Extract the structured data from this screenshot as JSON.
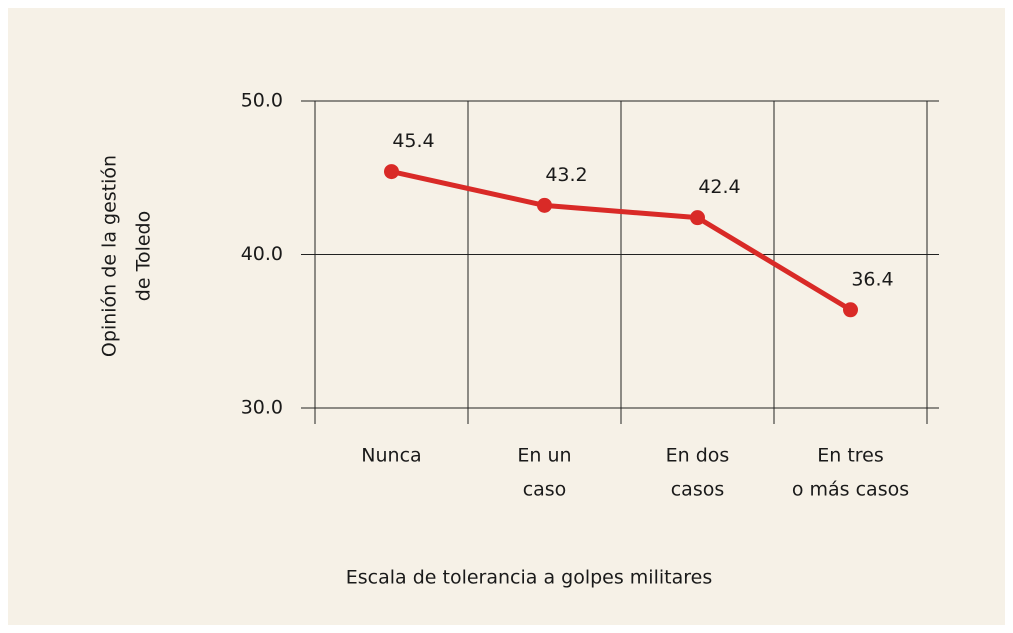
{
  "chart_data": {
    "type": "line",
    "categories": [
      [
        "Nunca"
      ],
      [
        "En un",
        "caso"
      ],
      [
        "En dos",
        "casos"
      ],
      [
        "En tres",
        "o más casos"
      ]
    ],
    "series": [
      {
        "values": [
          45.4,
          43.2,
          42.4,
          36.4
        ],
        "color": "#d92a27"
      }
    ],
    "ylim": [
      30,
      50
    ],
    "yticks": [
      {
        "value": 30,
        "label": "30.0"
      },
      {
        "value": 40,
        "label": "40.0"
      },
      {
        "value": 50,
        "label": "50.0"
      }
    ],
    "ylabel": [
      "Opinión de la gestión",
      "de Toledo"
    ],
    "xlabel": "Escala de tolerancia a golpes militares",
    "grid": true
  }
}
